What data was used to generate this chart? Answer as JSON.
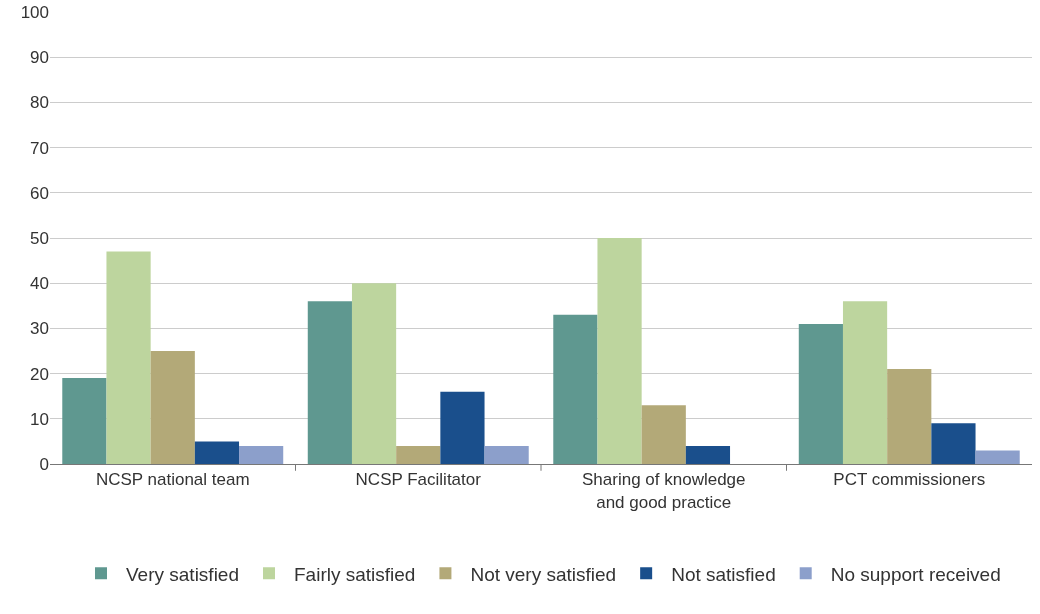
{
  "chart_data": {
    "type": "bar",
    "categories": [
      "NCSP national team",
      "NCSP Facilitator",
      "Sharing of knowledge and good practice",
      "PCT commissioners"
    ],
    "series": [
      {
        "name": "Very satisfied",
        "color": "#5f9890",
        "values": [
          19,
          36,
          33,
          31
        ]
      },
      {
        "name": "Fairly satisfied",
        "color": "#bdd59e",
        "values": [
          47,
          40,
          50,
          36
        ]
      },
      {
        "name": "Not very satisfied",
        "color": "#b3a978",
        "values": [
          25,
          4,
          13,
          21
        ]
      },
      {
        "name": "Not satisfied",
        "color": "#1a4f8c",
        "values": [
          5,
          16,
          4,
          9
        ]
      },
      {
        "name": "No support received",
        "color": "#8c9fcb",
        "values": [
          4,
          4,
          0,
          3
        ]
      }
    ],
    "ylim": [
      0,
      100
    ],
    "yticks": [
      0,
      10,
      20,
      30,
      40,
      50,
      60,
      70,
      80,
      90,
      100
    ],
    "grid": "y",
    "legend": "bottom"
  }
}
